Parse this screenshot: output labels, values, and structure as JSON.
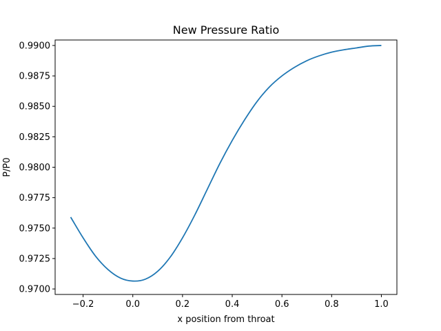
{
  "chart_data": {
    "type": "line",
    "title": "New Pressure Ratio",
    "xlabel": "x position from throat",
    "ylabel": "P/P0",
    "xlim": [
      -0.3125,
      1.0625
    ],
    "ylim": [
      0.96955,
      0.99045
    ],
    "x_ticks": [
      -0.2,
      0.0,
      0.2,
      0.4,
      0.6,
      0.8,
      1.0
    ],
    "x_tick_labels": [
      "−0.2",
      "0.0",
      "0.2",
      "0.4",
      "0.6",
      "0.8",
      "1.0"
    ],
    "y_ticks": [
      0.97,
      0.9725,
      0.975,
      0.9775,
      0.98,
      0.9825,
      0.985,
      0.9875,
      0.99
    ],
    "y_tick_labels": [
      "0.9700",
      "0.9725",
      "0.9750",
      "0.9775",
      "0.9800",
      "0.9825",
      "0.9850",
      "0.9875",
      "0.9900"
    ],
    "grid": false,
    "series": [
      {
        "color": "#1f77b4",
        "x": [
          -0.25,
          -0.2,
          -0.15,
          -0.1,
          -0.05,
          0.0,
          0.05,
          0.1,
          0.15,
          0.2,
          0.25,
          0.3,
          0.35,
          0.4,
          0.45,
          0.5,
          0.55,
          0.6,
          0.65,
          0.7,
          0.75,
          0.8,
          0.85,
          0.9,
          0.95,
          1.0
        ],
        "y": [
          0.9759,
          0.9742,
          0.9727,
          0.9716,
          0.9709,
          0.97065,
          0.9708,
          0.97145,
          0.9726,
          0.9742,
          0.9761,
          0.9782,
          0.9803,
          0.9822,
          0.9839,
          0.9854,
          0.9866,
          0.9875,
          0.9882,
          0.98875,
          0.98915,
          0.98945,
          0.98965,
          0.9898,
          0.98995,
          0.99
        ]
      }
    ]
  }
}
